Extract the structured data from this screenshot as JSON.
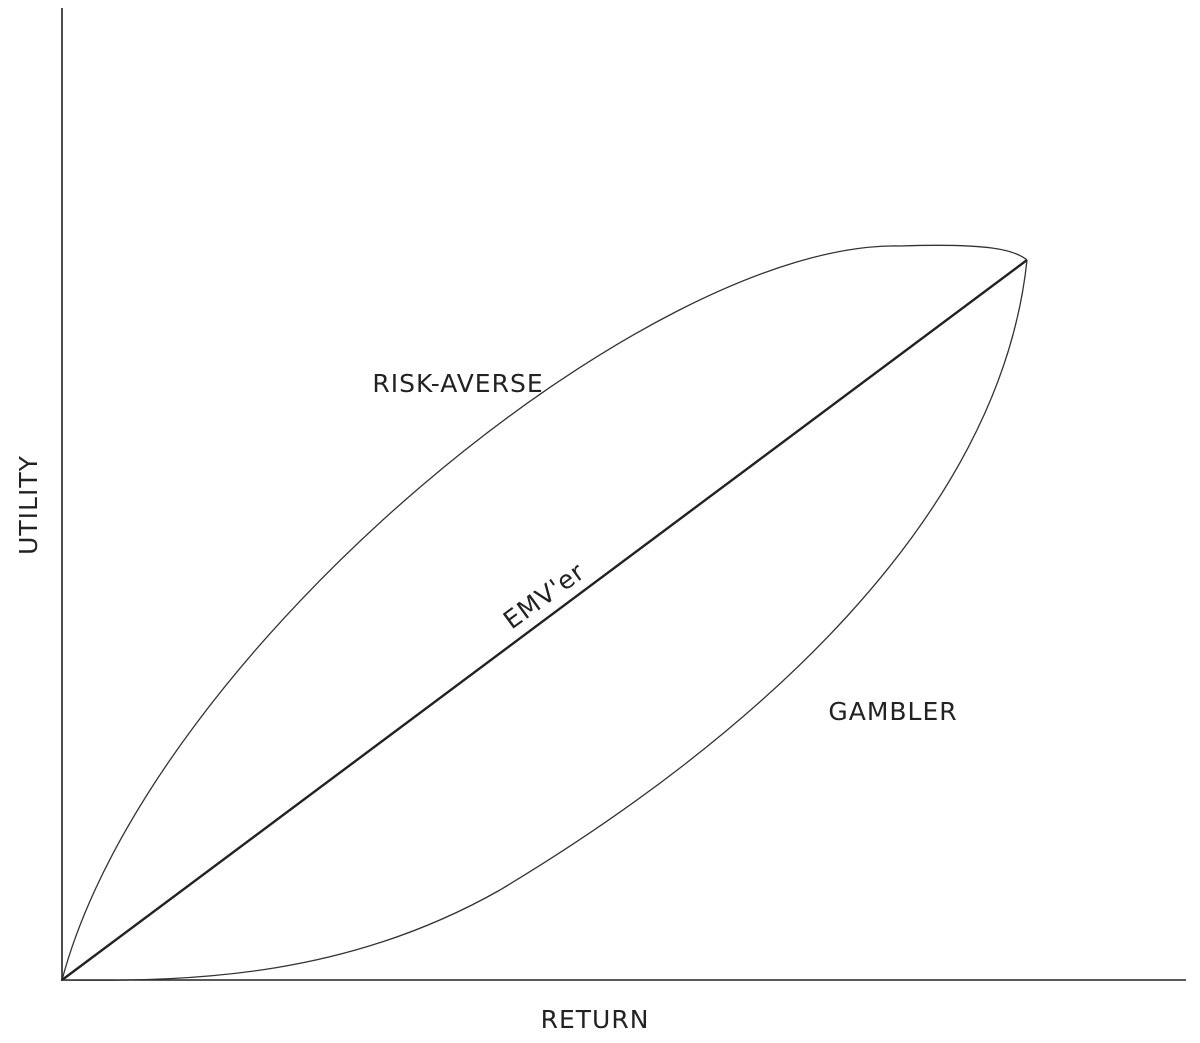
{
  "axes": {
    "x_label": "RETURN",
    "y_label": "UTILITY"
  },
  "curves": {
    "risk_averse": "RISK-AVERSE",
    "linear": "EMV'er",
    "gambler": "GAMBLER"
  }
}
